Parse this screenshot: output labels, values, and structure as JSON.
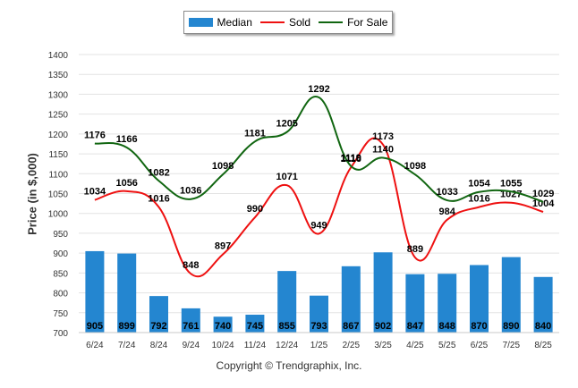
{
  "chart_data": {
    "type": "bar+line",
    "categories": [
      "6/24",
      "7/24",
      "8/24",
      "9/24",
      "10/24",
      "11/24",
      "12/24",
      "1/25",
      "2/25",
      "3/25",
      "4/25",
      "5/25",
      "6/25",
      "7/25",
      "8/25"
    ],
    "series": [
      {
        "name": "Median",
        "type": "bar",
        "color": "#2486d0",
        "values": [
          905,
          899,
          792,
          761,
          740,
          745,
          855,
          793,
          867,
          902,
          847,
          848,
          870,
          890,
          840
        ]
      },
      {
        "name": "Sold",
        "type": "line",
        "color": "#ee1111",
        "values": [
          1034,
          1056,
          1016,
          848,
          897,
          990,
          1071,
          949,
          1116,
          1173,
          889,
          984,
          1016,
          1027,
          1004
        ]
      },
      {
        "name": "For Sale",
        "type": "line",
        "color": "#116611",
        "values": [
          1176,
          1166,
          1082,
          1036,
          1098,
          1181,
          1205,
          1292,
          1119,
          1140,
          1098,
          1033,
          1054,
          1055,
          1029
        ]
      }
    ],
    "ylabel": "Price (in $,000)",
    "ylim": [
      700,
      1400
    ],
    "yticks": [
      "700",
      "750",
      "800",
      "850",
      "900",
      "950",
      "1000",
      "1050",
      "1100",
      "1150",
      "1200",
      "1250",
      "1300",
      "1350",
      "1400"
    ],
    "grid": true,
    "legend_position": "top-center"
  },
  "copyright": "Copyright © Trendgraphix, Inc."
}
